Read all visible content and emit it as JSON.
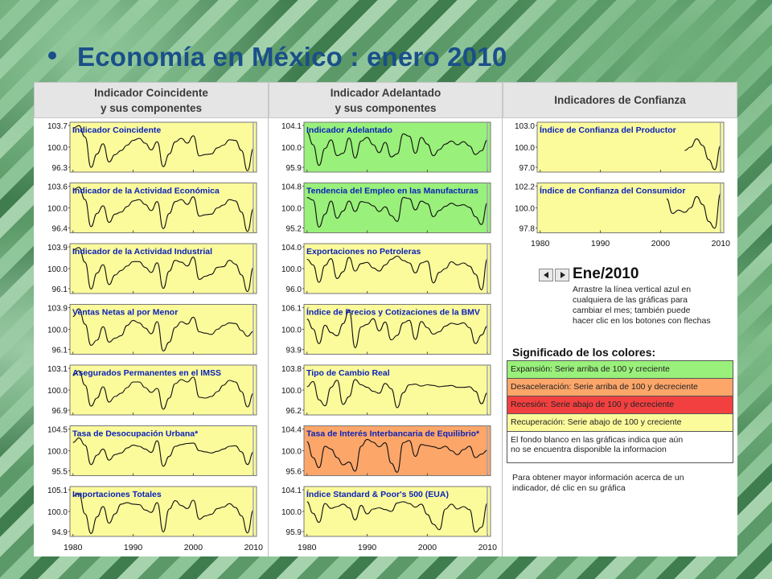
{
  "title": "Economía en México : enero 2010",
  "columns": [
    {
      "line1": "Indicador Coincidente",
      "line2": "y sus componentes"
    },
    {
      "line1": "Indicador Adelantado",
      "line2": "y sus componentes"
    },
    {
      "line1": "Indicadores de Confianza",
      "line2": ""
    }
  ],
  "nav": {
    "month": "Ene/2010",
    "instructions": [
      "Arrastre la línea vertical azul en",
      "cualquiera de las gráficas para",
      "cambiar el mes; también puede",
      "hacer clic en los botones con flechas"
    ]
  },
  "legend": {
    "title": "Significado de los colores:",
    "items": [
      {
        "label": "Expansión: Serie arriba de 100 y creciente",
        "color": "#99f07a"
      },
      {
        "label": "Desaceleración: Serie arriba de 100 y decreciente",
        "color": "#fca66a"
      },
      {
        "label": "Recesión: Serie abajo de 100 y decreciente",
        "color": "#f24040"
      },
      {
        "label": "Recuperación: Serie abajo de 100 y creciente",
        "color": "#fbfb9c"
      }
    ],
    "note": [
      "El fondo blanco en las gráficas indica que aún",
      "no se encuentra disponible la informacion"
    ],
    "info": [
      "Para obtener mayor información acerca de un",
      "indicador, dé clic en su gráfica"
    ]
  },
  "chart_data": [
    {
      "type": "line",
      "title": "Indicador Coincidente",
      "yticks": [
        "103.7",
        "100.0",
        "96.3"
      ],
      "ylim": [
        96.3,
        103.7
      ],
      "background": "#fbfb9c",
      "x": [
        1980,
        1981,
        1982,
        1983,
        1984,
        1985,
        1986,
        1987,
        1988,
        1989,
        1990,
        1991,
        1992,
        1993,
        1994,
        1995,
        1996,
        1997,
        1998,
        1999,
        2000,
        2001,
        2002,
        2003,
        2004,
        2005,
        2006,
        2007,
        2008,
        2009,
        2010
      ],
      "values": [
        102.8,
        103.2,
        101.5,
        97.0,
        99.0,
        100.5,
        97.8,
        98.9,
        99.5,
        100.3,
        101.0,
        101.3,
        100.6,
        99.6,
        100.8,
        97.1,
        99.0,
        100.8,
        101.3,
        100.6,
        101.7,
        98.7,
        98.9,
        99.0,
        99.9,
        100.3,
        101.1,
        101.0,
        99.5,
        96.5,
        99.8
      ]
    },
    {
      "type": "line",
      "title": "Indicador de la Actividad Económica",
      "yticks": [
        "103.6",
        "100.0",
        "96.4"
      ],
      "ylim": [
        96.4,
        103.6
      ],
      "background": "#fbfb9c",
      "x": [
        1980,
        1981,
        1982,
        1983,
        1984,
        1985,
        1986,
        1987,
        1988,
        1989,
        1990,
        1991,
        1992,
        1993,
        1994,
        1995,
        1996,
        1997,
        1998,
        1999,
        2000,
        2001,
        2002,
        2003,
        2004,
        2005,
        2006,
        2007,
        2008,
        2009,
        2010
      ],
      "values": [
        102.6,
        103.0,
        101.2,
        97.3,
        99.2,
        100.3,
        97.9,
        99.1,
        99.4,
        100.2,
        101.0,
        101.2,
        100.5,
        99.6,
        100.9,
        97.0,
        99.2,
        100.9,
        101.2,
        100.5,
        101.6,
        98.8,
        99.0,
        99.1,
        100.0,
        100.4,
        101.2,
        101.0,
        99.4,
        96.6,
        99.9
      ]
    },
    {
      "type": "line",
      "title": "Indicador de la Actividad Industrial",
      "yticks": [
        "103.9",
        "100.0",
        "96.1"
      ],
      "ylim": [
        96.1,
        103.9
      ],
      "background": "#fbfb9c",
      "x": [
        1980,
        1981,
        1982,
        1983,
        1984,
        1985,
        1986,
        1987,
        1988,
        1989,
        1990,
        1991,
        1992,
        1993,
        1994,
        1995,
        1996,
        1997,
        1998,
        1999,
        2000,
        2001,
        2002,
        2003,
        2004,
        2005,
        2006,
        2007,
        2008,
        2009,
        2010
      ],
      "values": [
        102.9,
        103.3,
        101.0,
        96.8,
        99.3,
        100.6,
        97.5,
        99.0,
        99.7,
        100.4,
        101.1,
        101.1,
        100.2,
        99.4,
        100.9,
        96.9,
        99.6,
        101.3,
        101.0,
        100.4,
        101.8,
        98.3,
        98.8,
        99.1,
        100.2,
        100.3,
        101.3,
        100.7,
        99.0,
        96.4,
        100.2
      ]
    },
    {
      "type": "line",
      "title": "Ventas Netas al por Menor",
      "yticks": [
        "103.9",
        "100.0",
        "96.1"
      ],
      "ylim": [
        96.1,
        103.9
      ],
      "background": "#fbfb9c",
      "x": [
        1980,
        1981,
        1982,
        1983,
        1984,
        1985,
        1986,
        1987,
        1988,
        1989,
        1990,
        1991,
        1992,
        1993,
        1994,
        1995,
        1996,
        1997,
        1998,
        1999,
        2000,
        2001,
        2002,
        2003,
        2004,
        2005,
        2006,
        2007,
        2008,
        2009,
        2010
      ],
      "values": [
        102.0,
        103.2,
        100.8,
        97.5,
        98.3,
        100.4,
        98.0,
        98.6,
        99.0,
        100.6,
        101.4,
        101.0,
        100.2,
        99.3,
        101.2,
        96.6,
        98.0,
        100.3,
        101.2,
        100.8,
        101.9,
        99.6,
        99.4,
        99.2,
        100.0,
        100.6,
        101.0,
        100.9,
        99.8,
        98.9,
        99.7
      ]
    },
    {
      "type": "line",
      "title": "Asegurados Permanentes en el IMSS",
      "yticks": [
        "103.1",
        "100.0",
        "96.9"
      ],
      "ylim": [
        96.9,
        103.1
      ],
      "background": "#fbfb9c",
      "x": [
        1980,
        1981,
        1982,
        1983,
        1984,
        1985,
        1986,
        1987,
        1988,
        1989,
        1990,
        1991,
        1992,
        1993,
        1994,
        1995,
        1996,
        1997,
        1998,
        1999,
        2000,
        2001,
        2002,
        2003,
        2004,
        2005,
        2006,
        2007,
        2008,
        2009,
        2010
      ],
      "values": [
        101.8,
        102.4,
        100.6,
        98.0,
        99.0,
        100.4,
        98.5,
        99.2,
        99.6,
        100.3,
        101.0,
        101.0,
        100.3,
        99.7,
        100.2,
        97.6,
        99.0,
        100.8,
        101.3,
        101.0,
        101.6,
        99.1,
        99.0,
        99.2,
        99.8,
        100.6,
        101.2,
        101.0,
        99.8,
        97.9,
        99.6
      ]
    },
    {
      "type": "line",
      "title": "Tasa de Desocupación Urbana*",
      "yticks": [
        "104.5",
        "100.0",
        "95.5"
      ],
      "ylim": [
        95.5,
        104.5
      ],
      "background": "#fbfb9c",
      "x": [
        1980,
        1981,
        1982,
        1983,
        1984,
        1985,
        1986,
        1987,
        1988,
        1989,
        1990,
        1991,
        1992,
        1993,
        1994,
        1995,
        1996,
        1997,
        1998,
        1999,
        2000,
        2001,
        2002,
        2003,
        2004,
        2005,
        2006,
        2007,
        2008,
        2009,
        2010
      ],
      "values": [
        101.5,
        102.3,
        101.0,
        97.5,
        99.2,
        100.3,
        98.3,
        99.3,
        99.6,
        100.5,
        101.0,
        100.8,
        100.3,
        99.7,
        101.8,
        97.2,
        99.0,
        100.8,
        101.1,
        101.3,
        101.4,
        100.0,
        99.8,
        99.6,
        99.9,
        100.3,
        100.8,
        100.9,
        99.8,
        97.5,
        99.8
      ]
    },
    {
      "type": "line",
      "title": "Importaciones Totales",
      "yticks": [
        "105.1",
        "100.0",
        "94.9"
      ],
      "ylim": [
        94.9,
        105.1
      ],
      "background": "#fbfb9c",
      "x": [
        1980,
        1981,
        1982,
        1983,
        1984,
        1985,
        1986,
        1987,
        1988,
        1989,
        1990,
        1991,
        1992,
        1993,
        1994,
        1995,
        1996,
        1997,
        1998,
        1999,
        2000,
        2001,
        2002,
        2003,
        2004,
        2005,
        2006,
        2007,
        2008,
        2009,
        2010
      ],
      "values": [
        103.2,
        103.6,
        99.5,
        95.5,
        98.9,
        101.0,
        97.6,
        99.5,
        101.5,
        101.8,
        101.5,
        101.4,
        100.3,
        99.8,
        101.8,
        95.8,
        100.5,
        102.2,
        101.2,
        100.6,
        102.3,
        98.4,
        99.1,
        99.4,
        100.6,
        100.9,
        101.6,
        100.8,
        99.1,
        95.6,
        100.3
      ]
    },
    {
      "type": "line",
      "title": "Indicador Adelantado",
      "yticks": [
        "104.1",
        "100.0",
        "95.9"
      ],
      "ylim": [
        95.9,
        104.1
      ],
      "background": "#99f07a",
      "x": [
        1980,
        1981,
        1982,
        1983,
        1984,
        1985,
        1986,
        1987,
        1988,
        1989,
        1990,
        1991,
        1992,
        1993,
        1994,
        1995,
        1996,
        1997,
        1998,
        1999,
        2000,
        2001,
        2002,
        2003,
        2004,
        2005,
        2006,
        2007,
        2008,
        2009,
        2010
      ],
      "values": [
        102.5,
        100.4,
        97.0,
        99.8,
        101.2,
        98.6,
        99.0,
        101.5,
        98.2,
        101.0,
        101.6,
        100.4,
        99.1,
        100.8,
        98.4,
        98.9,
        102.2,
        101.8,
        99.0,
        101.6,
        100.5,
        98.6,
        99.6,
        100.5,
        101.0,
        100.4,
        100.9,
        100.2,
        98.8,
        99.4,
        101.2
      ]
    },
    {
      "type": "line",
      "title": "Tendencia del Empleo en las Manufacturas",
      "yticks": [
        "104.8",
        "100.0",
        "95.2"
      ],
      "ylim": [
        95.2,
        104.8
      ],
      "background": "#99f07a",
      "x": [
        1980,
        1981,
        1982,
        1983,
        1984,
        1985,
        1986,
        1987,
        1988,
        1989,
        1990,
        1991,
        1992,
        1993,
        1994,
        1995,
        1996,
        1997,
        1998,
        1999,
        2000,
        2001,
        2002,
        2003,
        2004,
        2005,
        2006,
        2007,
        2008,
        2009,
        2010
      ],
      "values": [
        102.0,
        101.5,
        96.3,
        98.8,
        101.3,
        98.0,
        99.4,
        101.3,
        99.3,
        101.2,
        101.0,
        100.4,
        99.3,
        100.2,
        98.5,
        97.4,
        102.0,
        101.8,
        99.6,
        101.3,
        100.8,
        98.3,
        99.5,
        100.3,
        100.9,
        100.4,
        100.6,
        100.1,
        98.3,
        96.8,
        101.0
      ]
    },
    {
      "type": "line",
      "title": "Exportaciones no Petroleras",
      "yticks": [
        "104.0",
        "100.0",
        "96.0"
      ],
      "ylim": [
        96.0,
        104.0
      ],
      "background": "#fbfb9c",
      "x": [
        1980,
        1981,
        1982,
        1983,
        1984,
        1985,
        1986,
        1987,
        1988,
        1989,
        1990,
        1991,
        1992,
        1993,
        1994,
        1995,
        1996,
        1997,
        1998,
        1999,
        2000,
        2001,
        2002,
        2003,
        2004,
        2005,
        2006,
        2007,
        2008,
        2009,
        2010
      ],
      "values": [
        101.5,
        100.6,
        97.8,
        100.5,
        101.6,
        98.4,
        99.5,
        101.8,
        99.6,
        100.8,
        101.0,
        100.1,
        99.6,
        100.6,
        101.5,
        102.0,
        101.3,
        100.9,
        99.3,
        100.9,
        101.2,
        97.7,
        99.4,
        100.0,
        101.1,
        100.6,
        100.9,
        100.4,
        99.1,
        96.6,
        101.6
      ]
    },
    {
      "type": "line",
      "title": "Índice de Precios y Cotizaciones de la BMV",
      "yticks": [
        "106.1",
        "100.0",
        "93.9"
      ],
      "ylim": [
        93.9,
        106.1
      ],
      "background": "#fbfb9c",
      "x": [
        1980,
        1981,
        1982,
        1983,
        1984,
        1985,
        1986,
        1987,
        1988,
        1989,
        1990,
        1991,
        1992,
        1993,
        1994,
        1995,
        1996,
        1997,
        1998,
        1999,
        2000,
        2001,
        2002,
        2003,
        2004,
        2005,
        2006,
        2007,
        2008,
        2009,
        2010
      ],
      "values": [
        102.5,
        100.1,
        96.5,
        101.0,
        99.2,
        98.4,
        101.4,
        104.6,
        95.5,
        100.6,
        101.2,
        102.6,
        99.6,
        101.8,
        97.4,
        98.5,
        101.6,
        102.2,
        97.5,
        101.9,
        100.4,
        98.8,
        99.4,
        100.8,
        101.5,
        101.2,
        101.6,
        100.4,
        96.5,
        98.6,
        100.8
      ]
    },
    {
      "type": "line",
      "title": "Tipo de Cambio Real",
      "yticks": [
        "103.8",
        "100.0",
        "96.2"
      ],
      "ylim": [
        96.2,
        103.8
      ],
      "background": "#fbfb9c",
      "x": [
        1980,
        1981,
        1982,
        1983,
        1984,
        1985,
        1986,
        1987,
        1988,
        1989,
        1990,
        1991,
        1992,
        1993,
        1994,
        1995,
        1996,
        1997,
        1998,
        1999,
        2000,
        2001,
        2002,
        2003,
        2004,
        2005,
        2006,
        2007,
        2008,
        2009,
        2010
      ],
      "values": [
        100.5,
        101.3,
        98.5,
        97.6,
        100.4,
        101.5,
        97.8,
        99.0,
        101.6,
        100.8,
        100.4,
        99.8,
        99.5,
        101.0,
        100.2,
        97.3,
        99.6,
        100.8,
        100.9,
        100.6,
        100.8,
        100.7,
        100.5,
        100.6,
        100.7,
        100.4,
        100.4,
        100.5,
        99.8,
        97.9,
        99.6
      ]
    },
    {
      "type": "line",
      "title": "Tasa de Interés Interbancaria de Equilibrio*",
      "yticks": [
        "104.4",
        "100.0",
        "95.6"
      ],
      "ylim": [
        95.6,
        104.4
      ],
      "background": "#fca66a",
      "x": [
        1980,
        1981,
        1982,
        1983,
        1984,
        1985,
        1986,
        1987,
        1988,
        1989,
        1990,
        1991,
        1992,
        1993,
        1994,
        1995,
        1996,
        1997,
        1998,
        1999,
        2000,
        2001,
        2002,
        2003,
        2004,
        2005,
        2006,
        2007,
        2008,
        2009,
        2010
      ],
      "values": [
        101.6,
        98.8,
        97.0,
        100.8,
        100.3,
        98.8,
        97.5,
        98.0,
        96.4,
        100.8,
        102.0,
        101.5,
        100.7,
        101.4,
        97.8,
        96.2,
        101.4,
        101.8,
        99.0,
        101.1,
        100.9,
        100.7,
        100.4,
        100.8,
        100.0,
        99.3,
        100.2,
        100.8,
        98.8,
        99.4,
        100.1
      ]
    },
    {
      "type": "line",
      "title": "Índice Standard & Poor's 500 (EUA)",
      "yticks": [
        "104.1",
        "100.0",
        "95.9"
      ],
      "ylim": [
        95.9,
        104.1
      ],
      "background": "#fbfb9c",
      "x": [
        1980,
        1981,
        1982,
        1983,
        1984,
        1985,
        1986,
        1987,
        1988,
        1989,
        1990,
        1991,
        1992,
        1993,
        1994,
        1995,
        1996,
        1997,
        1998,
        1999,
        2000,
        2001,
        2002,
        2003,
        2004,
        2005,
        2006,
        2007,
        2008,
        2009,
        2010
      ],
      "values": [
        101.6,
        99.7,
        98.2,
        101.3,
        100.5,
        100.8,
        101.2,
        100.6,
        98.6,
        101.0,
        99.6,
        100.4,
        100.6,
        100.3,
        100.0,
        101.4,
        101.6,
        101.3,
        100.7,
        101.2,
        99.5,
        97.9,
        97.0,
        100.4,
        101.2,
        100.4,
        100.8,
        100.3,
        96.6,
        97.4,
        101.4
      ]
    },
    {
      "type": "line",
      "title": "Índice de Confianza del Productor",
      "yticks": [
        "103.0",
        "100.0",
        "97.0"
      ],
      "ylim": [
        97.0,
        103.0
      ],
      "background": "#fbfb9c",
      "x": [
        2004,
        2005,
        2006,
        2007,
        2008,
        2009,
        2010
      ],
      "values": [
        99.6,
        100.0,
        101.0,
        100.2,
        98.5,
        97.3,
        100.2
      ]
    },
    {
      "type": "line",
      "title": "Índice de Confianza del Consumidor",
      "yticks": [
        "102.2",
        "100.0",
        "97.8"
      ],
      "ylim": [
        97.8,
        102.2
      ],
      "background": "#fbfb9c",
      "x": [
        2001,
        2002,
        2003,
        2004,
        2005,
        2006,
        2007,
        2008,
        2009,
        2010
      ],
      "values": [
        100.8,
        99.5,
        99.8,
        99.6,
        100.0,
        101.0,
        100.3,
        98.8,
        98.2,
        101.3
      ]
    }
  ],
  "xticks": [
    "1980",
    "1990",
    "2000",
    "2010"
  ]
}
